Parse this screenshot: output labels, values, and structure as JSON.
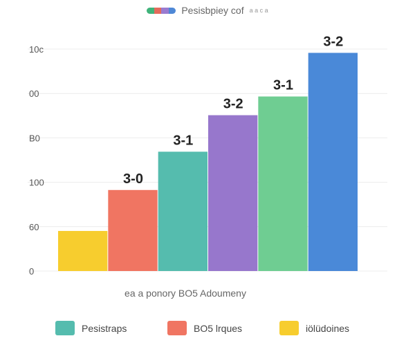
{
  "title": {
    "text": "Pesisbpiey cof",
    "extra": "a a c a",
    "swatch_colors": [
      "#3fb37a",
      "#e46a5c",
      "#9a7bd0",
      "#4e88d6"
    ]
  },
  "chart_data": {
    "type": "bar",
    "title": "Pesisbpiey cof",
    "xlabel": "ea a ponory  BO5 Adoumeny",
    "ylabel": "",
    "grid": true,
    "legend_position": "bottom",
    "y_tick_labels": [
      "0",
      "60",
      "100",
      "B0",
      "00",
      "10c"
    ],
    "ylim": [
      0,
      250
    ],
    "values": [
      45,
      91,
      134,
      175,
      196,
      245
    ],
    "data_labels": [
      "",
      "3-0",
      "3-1",
      "3-2",
      "3-1",
      "3-2"
    ],
    "colors": [
      "#f7cd2e",
      "#f07562",
      "#55bcae",
      "#9777cc",
      "#6fcd92",
      "#4a89d8"
    ]
  },
  "legend": [
    {
      "label": "Pesistraps",
      "color": "#55bcae"
    },
    {
      "label": "BO5 lrques",
      "color": "#f07562"
    },
    {
      "label": "iölüdoines",
      "color": "#f7cd2e"
    }
  ]
}
